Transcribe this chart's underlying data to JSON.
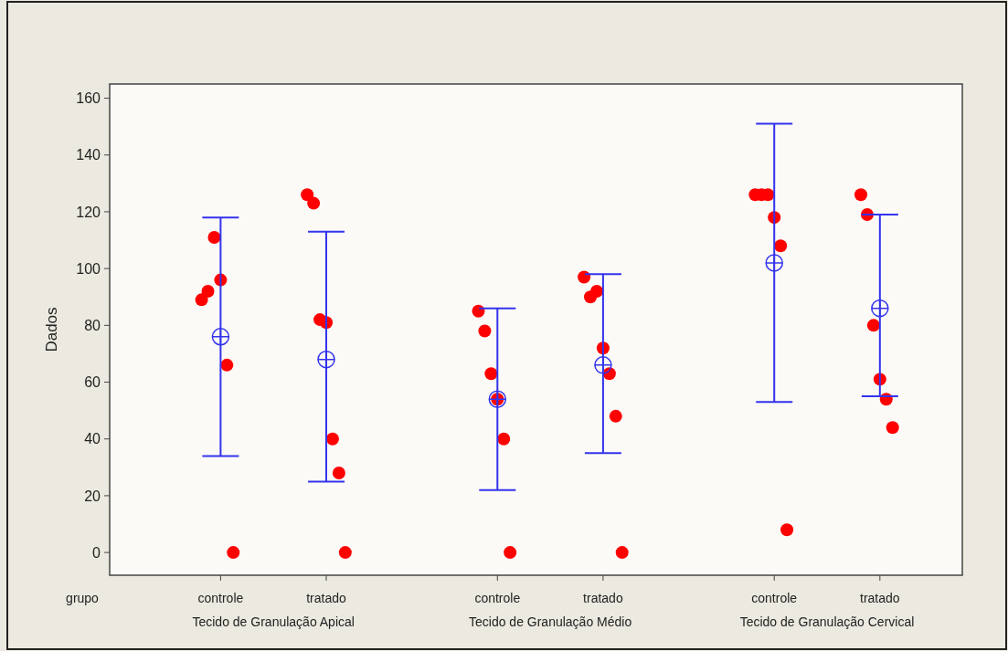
{
  "chart_data": {
    "type": "scatter",
    "ylabel": "Dados",
    "xlabel": "grupo",
    "categories": [
      "controle",
      "tratado",
      "controle",
      "tratado",
      "controle",
      "tratado"
    ],
    "ylim": [
      -8,
      165
    ],
    "yticks": [
      0,
      20,
      40,
      60,
      80,
      100,
      120,
      140,
      160
    ],
    "annotations": [
      "Tecido de Granulação Apical",
      "Tecido de Granulação Médio",
      "Tecido de Granulação Cervical"
    ],
    "grid": false,
    "series": [
      {
        "type": "scatter",
        "color": "#ff0000",
        "marker": "circle",
        "values": [
          89,
          126,
          85,
          97,
          126,
          126
        ]
      },
      {
        "type": "scatter",
        "color": "#ff0000",
        "marker": "circle",
        "values": [
          92,
          123,
          78,
          90,
          126,
          119
        ]
      },
      {
        "type": "scatter",
        "color": "#ff0000",
        "marker": "circle",
        "values": [
          111,
          82,
          63,
          92,
          126,
          80
        ]
      },
      {
        "type": "scatter",
        "color": "#ff0000",
        "marker": "circle",
        "values": [
          96,
          81,
          54,
          72,
          118,
          61
        ]
      },
      {
        "type": "scatter",
        "color": "#ff0000",
        "marker": "circle",
        "values": [
          66,
          40,
          40,
          63,
          108,
          54
        ]
      },
      {
        "type": "scatter",
        "color": "#ff0000",
        "marker": "circle",
        "values": [
          0,
          28,
          0,
          48,
          8,
          44
        ]
      },
      {
        "type": "scatter",
        "color": "#ff0000",
        "marker": "circle",
        "values": [
          null,
          0,
          null,
          0,
          null,
          null
        ]
      },
      {
        "type": "scatter",
        "color": "#3333ee",
        "marker": "circle",
        "values": [
          76,
          68,
          54,
          66,
          102,
          86
        ],
        "errors": [
          [
            34,
            118
          ],
          [
            25,
            113
          ],
          [
            22,
            86
          ],
          [
            35,
            98
          ],
          [
            53,
            151
          ],
          [
            55,
            119
          ]
        ]
      }
    ]
  }
}
